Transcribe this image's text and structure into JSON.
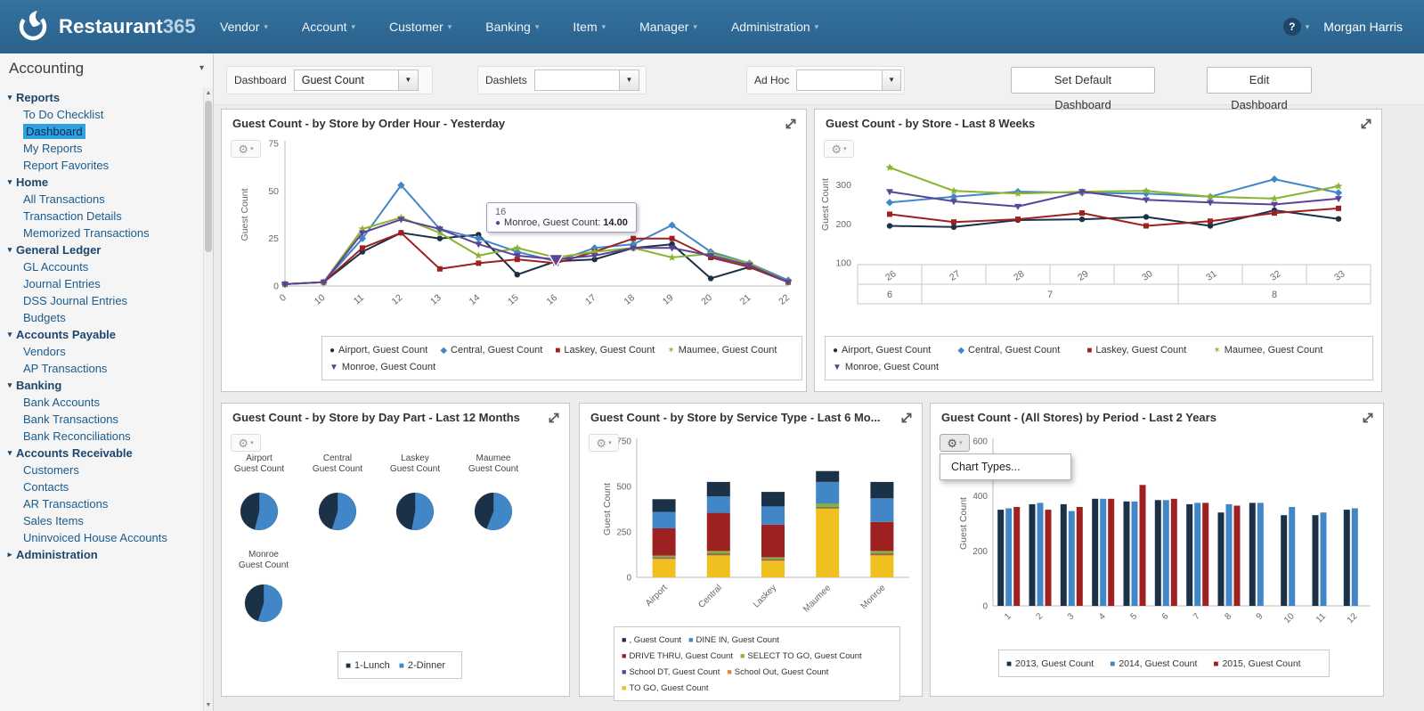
{
  "nav": {
    "brand": {
      "name": "Restaurant",
      "suffix": "365"
    },
    "items": [
      "Vendor",
      "Account",
      "Customer",
      "Banking",
      "Item",
      "Manager",
      "Administration"
    ],
    "help_label": "?",
    "user": "Morgan Harris"
  },
  "sidebar": {
    "module": "Accounting",
    "sections": [
      {
        "label": "Reports",
        "expanded": true,
        "items": [
          {
            "label": "To Do Checklist"
          },
          {
            "label": "Dashboard",
            "selected": true
          },
          {
            "label": "My Reports"
          },
          {
            "label": "Report Favorites"
          }
        ]
      },
      {
        "label": "Home",
        "expanded": true,
        "items": [
          {
            "label": "All Transactions"
          },
          {
            "label": "Transaction Details"
          },
          {
            "label": "Memorized Transactions"
          }
        ]
      },
      {
        "label": "General Ledger",
        "expanded": true,
        "items": [
          {
            "label": "GL Accounts"
          },
          {
            "label": "Journal Entries"
          },
          {
            "label": "DSS Journal Entries"
          },
          {
            "label": "Budgets"
          }
        ]
      },
      {
        "label": "Accounts Payable",
        "expanded": true,
        "items": [
          {
            "label": "Vendors"
          },
          {
            "label": "AP Transactions"
          }
        ]
      },
      {
        "label": "Banking",
        "expanded": true,
        "items": [
          {
            "label": "Bank Accounts"
          },
          {
            "label": "Bank Transactions"
          },
          {
            "label": "Bank Reconciliations"
          }
        ]
      },
      {
        "label": "Accounts Receivable",
        "expanded": true,
        "items": [
          {
            "label": "Customers"
          },
          {
            "label": "Contacts"
          },
          {
            "label": "AR Transactions"
          },
          {
            "label": "Sales Items"
          },
          {
            "label": "Uninvoiced House Accounts"
          }
        ]
      },
      {
        "label": "Administration",
        "expanded": false,
        "items": []
      }
    ]
  },
  "toolbar": {
    "dashboard_label": "Dashboard",
    "dashboard_value": "Guest Count",
    "dashlets_label": "Dashlets",
    "dashlets_value": "",
    "adhoc_label": "Ad Hoc",
    "adhoc_value": "",
    "set_default_button": "Set Default Dashboard",
    "edit_button": "Edit Dashboard"
  },
  "colors": {
    "navy": "#1b3147",
    "blue": "#4186c6",
    "red": "#9e2121",
    "green": "#8ab42f",
    "purple": "#5b4397",
    "orange": "#e8862d",
    "yellow": "#f0c020",
    "navbar": "#2e6a99",
    "selection": "#2fa0e0"
  },
  "chart_data": [
    {
      "type": "line",
      "title": "Guest Count - by Store by Order Hour - Yesterday",
      "ylabel": "Guest Count",
      "yticks": [
        0,
        25,
        50,
        75
      ],
      "ylim": [
        0,
        75
      ],
      "categories": [
        "0",
        "10",
        "11",
        "12",
        "13",
        "14",
        "15",
        "16",
        "17",
        "18",
        "19",
        "20",
        "21",
        "22"
      ],
      "series": [
        {
          "name": "Airport, Guest Count",
          "color": "navy",
          "marker": "circle",
          "values": [
            1,
            2,
            18,
            28,
            25,
            27,
            6,
            13,
            14,
            20,
            22,
            4,
            10,
            2
          ]
        },
        {
          "name": "Central, Guest Count",
          "color": "blue",
          "marker": "diamond",
          "values": [
            1,
            2,
            25,
            53,
            30,
            25,
            18,
            13,
            20,
            22,
            32,
            18,
            12,
            3
          ]
        },
        {
          "name": "Laskey, Guest Count",
          "color": "red",
          "marker": "square",
          "values": [
            1,
            2,
            20,
            28,
            9,
            12,
            14,
            12,
            18,
            25,
            25,
            15,
            10,
            2
          ]
        },
        {
          "name": "Maumee, Guest Count",
          "color": "green",
          "marker": "star",
          "values": [
            1,
            2,
            30,
            36,
            28,
            16,
            20,
            15,
            18,
            20,
            15,
            17,
            12,
            2
          ]
        },
        {
          "name": "Monroe, Guest Count",
          "color": "purple",
          "marker": "triangle",
          "values": [
            1,
            2,
            28,
            35,
            30,
            22,
            16,
            14,
            16,
            20,
            20,
            16,
            11,
            2
          ]
        }
      ],
      "tooltip": {
        "header": "16",
        "series": "Monroe, Guest Count:",
        "value": "14.00",
        "x_index": 7,
        "y_value": 14
      }
    },
    {
      "type": "line",
      "title": "Guest Count - by Store - Last 8 Weeks",
      "ylabel": "Guest Count",
      "yticks": [
        100,
        200,
        300,
        400
      ],
      "ylim": [
        100,
        400
      ],
      "categories": [
        "26",
        "27",
        "28",
        "29",
        "30",
        "31",
        "32",
        "33"
      ],
      "month_groups": [
        {
          "label": "6",
          "span": 1
        },
        {
          "label": "7",
          "span": 4
        },
        {
          "label": "8",
          "span": 3
        }
      ],
      "series": [
        {
          "name": "Airport, Guest Count",
          "color": "navy",
          "marker": "circle",
          "values": [
            195,
            192,
            210,
            212,
            218,
            195,
            235,
            213
          ]
        },
        {
          "name": "Central, Guest Count",
          "color": "blue",
          "marker": "diamond",
          "values": [
            255,
            270,
            283,
            280,
            278,
            270,
            315,
            280
          ]
        },
        {
          "name": "Laskey, Guest Count",
          "color": "red",
          "marker": "square",
          "values": [
            225,
            205,
            212,
            228,
            195,
            207,
            228,
            240
          ]
        },
        {
          "name": "Maumee, Guest Count",
          "color": "green",
          "marker": "star",
          "values": [
            345,
            285,
            278,
            283,
            285,
            270,
            265,
            297
          ]
        },
        {
          "name": "Monroe, Guest Count",
          "color": "purple",
          "marker": "triangle",
          "values": [
            283,
            258,
            245,
            283,
            262,
            255,
            250,
            265
          ]
        }
      ]
    },
    {
      "type": "pie-grid",
      "title": "Guest Count - by Store by Day Part - Last 12 Months",
      "slices": [
        {
          "name": "1-Lunch",
          "color": "navy"
        },
        {
          "name": "2-Dinner",
          "color": "blue"
        }
      ],
      "pies": [
        {
          "label_line1": "Airport",
          "label_line2": "Guest Count",
          "values": [
            46,
            54
          ]
        },
        {
          "label_line1": "Central",
          "label_line2": "Guest Count",
          "values": [
            45,
            55
          ]
        },
        {
          "label_line1": "Laskey",
          "label_line2": "Guest Count",
          "values": [
            47,
            53
          ]
        },
        {
          "label_line1": "Maumee",
          "label_line2": "Guest Count",
          "values": [
            44,
            56
          ]
        },
        {
          "label_line1": "Monroe",
          "label_line2": "Guest Count",
          "values": [
            45,
            55
          ]
        }
      ]
    },
    {
      "type": "stacked-bar",
      "title": "Guest Count - by Store by Service Type - Last 6 Mo...",
      "ylabel": "Guest Count",
      "yticks": [
        0,
        250,
        500,
        750
      ],
      "ylim": [
        0,
        750
      ],
      "categories": [
        "Airport",
        "Central",
        "Laskey",
        "Maumee",
        "Monroe"
      ],
      "series": [
        {
          "name": ", Guest Count",
          "color": "navy",
          "values": [
            70,
            80,
            80,
            60,
            90
          ]
        },
        {
          "name": "DINE IN, Guest Count",
          "color": "blue",
          "values": [
            90,
            90,
            100,
            120,
            130
          ]
        },
        {
          "name": "DRIVE THRU, Guest Count",
          "color": "red",
          "values": [
            150,
            210,
            180,
            0,
            160
          ]
        },
        {
          "name": "SELECT TO GO, Guest Count",
          "color": "green",
          "values": [
            10,
            15,
            10,
            20,
            15
          ]
        },
        {
          "name": "School DT, Guest Count",
          "color": "purple",
          "values": [
            5,
            5,
            5,
            5,
            5
          ]
        },
        {
          "name": "School Out, Guest Count",
          "color": "orange",
          "values": [
            5,
            5,
            5,
            0,
            5
          ]
        },
        {
          "name": "TO GO, Guest Count",
          "color": "yellow",
          "values": [
            100,
            120,
            90,
            380,
            120
          ]
        }
      ]
    },
    {
      "type": "grouped-bar",
      "title": "Guest Count - (All Stores) by Period - Last 2 Years",
      "ylabel": "Guest Count",
      "yticks": [
        0,
        200,
        400,
        600
      ],
      "ylim": [
        0,
        600
      ],
      "categories": [
        "1",
        "2",
        "3",
        "4",
        "5",
        "6",
        "7",
        "8",
        "9",
        "10",
        "11",
        "12"
      ],
      "series": [
        {
          "name": "2013, Guest Count",
          "color": "navy",
          "values": [
            350,
            370,
            370,
            390,
            380,
            385,
            370,
            340,
            375,
            330,
            330,
            350
          ]
        },
        {
          "name": "2014, Guest Count",
          "color": "blue",
          "values": [
            355,
            375,
            345,
            390,
            380,
            385,
            375,
            370,
            375,
            360,
            340,
            355
          ]
        },
        {
          "name": "2015, Guest Count",
          "color": "red",
          "values": [
            360,
            350,
            360,
            390,
            440,
            390,
            375,
            365,
            null,
            null,
            null,
            null
          ]
        }
      ],
      "menu": {
        "label": "Chart Types..."
      }
    }
  ]
}
